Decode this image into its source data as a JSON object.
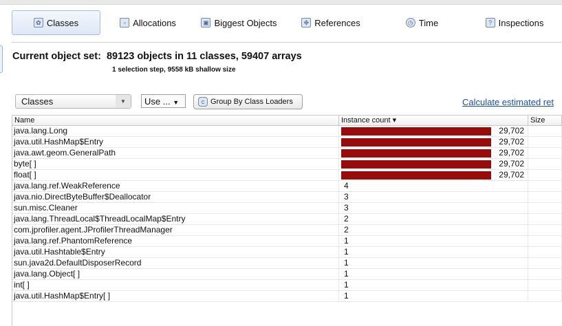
{
  "toolbar": {
    "tabs": [
      {
        "label": "Classes",
        "icon": "classes-icon",
        "active": true
      },
      {
        "label": "Allocations",
        "icon": "allocations-icon"
      },
      {
        "label": "Biggest Objects",
        "icon": "biggest-objects-icon"
      },
      {
        "label": "References",
        "icon": "references-icon"
      },
      {
        "label": "Time",
        "icon": "time-icon"
      },
      {
        "label": "Inspections",
        "icon": "inspections-icon"
      }
    ]
  },
  "header": {
    "title": "Current object set:  89123 objects in 11 classes, 59407 arrays",
    "subtitle": "1 selection step, 9558 kB shallow size"
  },
  "controls": {
    "view_select": "Classes",
    "use_select": "Use ...",
    "group_button": "Group By Class Loaders",
    "calc_link": "Calculate estimated ret"
  },
  "table": {
    "columns": [
      "Name",
      "Instance count ▾",
      "Size"
    ],
    "max": 29702,
    "bar_color": "#990b0b",
    "rows": [
      {
        "name": "java.lang.Long",
        "count": 29702,
        "display": "29,702"
      },
      {
        "name": "java.util.HashMap$Entry",
        "count": 29702,
        "display": "29,702"
      },
      {
        "name": "java.awt.geom.GeneralPath",
        "count": 29702,
        "display": "29,702"
      },
      {
        "name": "byte[ ]",
        "count": 29702,
        "display": "29,702"
      },
      {
        "name": "float[ ]",
        "count": 29702,
        "display": "29,702"
      },
      {
        "name": "java.lang.ref.WeakReference",
        "count": 4,
        "display": "4"
      },
      {
        "name": "java.nio.DirectByteBuffer$Deallocator",
        "count": 3,
        "display": "3"
      },
      {
        "name": "sun.misc.Cleaner",
        "count": 3,
        "display": "3"
      },
      {
        "name": "java.lang.ThreadLocal$ThreadLocalMap$Entry",
        "count": 2,
        "display": "2"
      },
      {
        "name": "com.jprofiler.agent.JProfilerThreadManager",
        "count": 2,
        "display": "2"
      },
      {
        "name": "java.lang.ref.PhantomReference",
        "count": 1,
        "display": "1"
      },
      {
        "name": "java.util.Hashtable$Entry",
        "count": 1,
        "display": "1"
      },
      {
        "name": "sun.java2d.DefaultDisposerRecord",
        "count": 1,
        "display": "1"
      },
      {
        "name": "java.lang.Object[ ]",
        "count": 1,
        "display": "1"
      },
      {
        "name": "int[ ]",
        "count": 1,
        "display": "1"
      },
      {
        "name": "java.util.HashMap$Entry[ ]",
        "count": 1,
        "display": "1"
      }
    ]
  }
}
